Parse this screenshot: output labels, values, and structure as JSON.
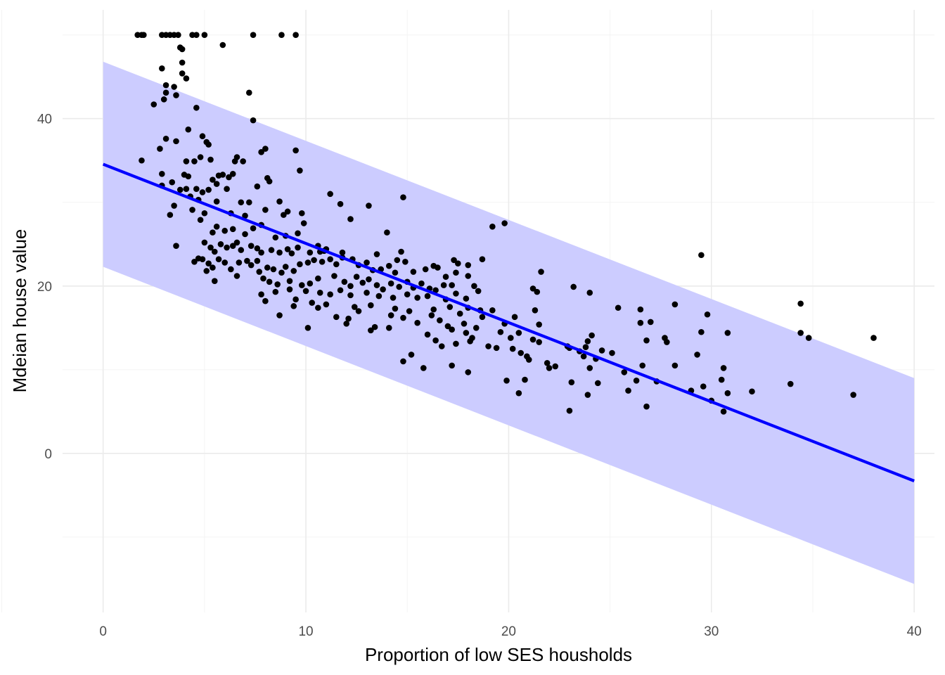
{
  "chart_data": {
    "type": "scatter",
    "xlabel": "Proportion of low SES housholds",
    "ylabel": "Mdeian house value",
    "xlim": [
      -2,
      41
    ],
    "ylim": [
      -19,
      53
    ],
    "x_ticks": [
      0,
      10,
      20,
      30,
      40
    ],
    "y_ticks": [
      0,
      20,
      40
    ],
    "grid": true,
    "legend": "none",
    "colors": {
      "points": "#000000",
      "fit_line": "#0000ff",
      "band": "#ccccff",
      "grid_major": "#ebebeb",
      "grid_minor": "#f4f4f4"
    },
    "fit": {
      "x": [
        0,
        40
      ],
      "y": [
        34.55,
        -3.29
      ]
    },
    "prediction_band": {
      "x": [
        0,
        40
      ],
      "lower": [
        22.3,
        -15.6
      ],
      "upper": [
        46.8,
        9.0
      ]
    },
    "points": [
      [
        1.7,
        50
      ],
      [
        1.9,
        50
      ],
      [
        2.0,
        50
      ],
      [
        2.9,
        50
      ],
      [
        3.1,
        50
      ],
      [
        3.3,
        50
      ],
      [
        3.5,
        50
      ],
      [
        3.7,
        50
      ],
      [
        4.4,
        50
      ],
      [
        4.6,
        50
      ],
      [
        5.0,
        50
      ],
      [
        7.4,
        50
      ],
      [
        8.8,
        50
      ],
      [
        9.5,
        50
      ],
      [
        5.9,
        48.8
      ],
      [
        3.8,
        48.5
      ],
      [
        3.9,
        48.3
      ],
      [
        3.9,
        46.7
      ],
      [
        2.9,
        46.0
      ],
      [
        3.9,
        45.4
      ],
      [
        4.1,
        44.8
      ],
      [
        3.1,
        44.0
      ],
      [
        3.5,
        43.8
      ],
      [
        3.1,
        43.1
      ],
      [
        3.6,
        42.8
      ],
      [
        3.0,
        42.3
      ],
      [
        2.5,
        41.7
      ],
      [
        4.6,
        41.3
      ],
      [
        7.2,
        43.1
      ],
      [
        7.4,
        39.8
      ],
      [
        4.2,
        38.7
      ],
      [
        3.1,
        37.6
      ],
      [
        3.6,
        37.3
      ],
      [
        4.9,
        37.9
      ],
      [
        5.1,
        37.2
      ],
      [
        5.2,
        36.9
      ],
      [
        2.8,
        36.4
      ],
      [
        7.8,
        36.0
      ],
      [
        8.0,
        36.4
      ],
      [
        9.5,
        36.2
      ],
      [
        6.6,
        35.4
      ],
      [
        6.5,
        34.9
      ],
      [
        5.3,
        35.1
      ],
      [
        1.9,
        35.0
      ],
      [
        4.1,
        34.9
      ],
      [
        4.8,
        35.4
      ],
      [
        4.5,
        34.9
      ],
      [
        6.9,
        34.9
      ],
      [
        9.7,
        33.8
      ],
      [
        2.9,
        33.4
      ],
      [
        4.0,
        33.3
      ],
      [
        4.2,
        33.1
      ],
      [
        5.7,
        33.2
      ],
      [
        5.9,
        33.3
      ],
      [
        6.4,
        33.4
      ],
      [
        6.2,
        33.0
      ],
      [
        3.4,
        32.4
      ],
      [
        5.4,
        32.7
      ],
      [
        5.6,
        32.2
      ],
      [
        8.2,
        32.5
      ],
      [
        8.1,
        32.9
      ],
      [
        7.6,
        31.9
      ],
      [
        6.1,
        31.6
      ],
      [
        3.8,
        31.5
      ],
      [
        2.9,
        32.0
      ],
      [
        4.1,
        31.6
      ],
      [
        4.6,
        31.6
      ],
      [
        4.9,
        31.2
      ],
      [
        5.2,
        31.5
      ],
      [
        4.3,
        30.7
      ],
      [
        4.7,
        30.3
      ],
      [
        3.5,
        29.6
      ],
      [
        5.6,
        30.1
      ],
      [
        6.8,
        30.0
      ],
      [
        7.2,
        30.0
      ],
      [
        8.0,
        29.1
      ],
      [
        8.7,
        30.1
      ],
      [
        9.1,
        28.9
      ],
      [
        4.4,
        29.1
      ],
      [
        5.0,
        28.7
      ],
      [
        6.3,
        28.7
      ],
      [
        7.0,
        28.4
      ],
      [
        8.9,
        28.5
      ],
      [
        9.8,
        28.7
      ],
      [
        3.3,
        28.5
      ],
      [
        4.8,
        27.9
      ],
      [
        5.6,
        27.1
      ],
      [
        6.4,
        26.8
      ],
      [
        7.8,
        27.3
      ],
      [
        9.9,
        27.5
      ],
      [
        7.4,
        26.9
      ],
      [
        5.4,
        26.4
      ],
      [
        6.0,
        26.6
      ],
      [
        7.0,
        26.2
      ],
      [
        8.5,
        25.8
      ],
      [
        9.0,
        26.0
      ],
      [
        9.6,
        26.3
      ],
      [
        3.6,
        24.8
      ],
      [
        5.0,
        25.2
      ],
      [
        5.3,
        24.6
      ],
      [
        5.5,
        24.1
      ],
      [
        5.8,
        25.0
      ],
      [
        6.1,
        24.6
      ],
      [
        6.4,
        24.8
      ],
      [
        6.6,
        25.2
      ],
      [
        6.8,
        24.3
      ],
      [
        7.3,
        24.8
      ],
      [
        7.6,
        24.5
      ],
      [
        7.8,
        24.0
      ],
      [
        8.3,
        24.3
      ],
      [
        8.7,
        24.0
      ],
      [
        9.1,
        24.4
      ],
      [
        9.3,
        23.9
      ],
      [
        9.6,
        24.6
      ],
      [
        10.2,
        24.0
      ],
      [
        10.7,
        24.1
      ],
      [
        11.0,
        24.4
      ],
      [
        4.9,
        23.2
      ],
      [
        5.2,
        22.7
      ],
      [
        5.4,
        22.2
      ],
      [
        5.7,
        23.2
      ],
      [
        6.0,
        22.8
      ],
      [
        6.3,
        22.0
      ],
      [
        6.7,
        22.8
      ],
      [
        7.1,
        23.0
      ],
      [
        7.3,
        22.5
      ],
      [
        7.6,
        23.0
      ],
      [
        7.7,
        21.7
      ],
      [
        8.1,
        22.2
      ],
      [
        8.4,
        22.0
      ],
      [
        8.8,
        21.6
      ],
      [
        9.0,
        22.3
      ],
      [
        9.4,
        21.8
      ],
      [
        9.7,
        22.6
      ],
      [
        10.1,
        22.8
      ],
      [
        10.4,
        23.1
      ],
      [
        10.8,
        22.9
      ],
      [
        11.2,
        23.2
      ],
      [
        11.5,
        22.6
      ],
      [
        11.8,
        23.4
      ],
      [
        12.3,
        23.2
      ],
      [
        12.6,
        22.5
      ],
      [
        13.0,
        22.8
      ],
      [
        13.3,
        21.9
      ],
      [
        13.7,
        22.0
      ],
      [
        14.1,
        22.4
      ],
      [
        14.4,
        21.6
      ],
      [
        4.5,
        22.9
      ],
      [
        4.7,
        23.3
      ],
      [
        5.1,
        21.8
      ],
      [
        5.5,
        20.6
      ],
      [
        6.6,
        21.2
      ],
      [
        7.9,
        20.9
      ],
      [
        8.2,
        20.5
      ],
      [
        8.6,
        20.2
      ],
      [
        9.2,
        20.6
      ],
      [
        9.8,
        20.1
      ],
      [
        10.2,
        20.3
      ],
      [
        10.6,
        20.9
      ],
      [
        11.4,
        21.2
      ],
      [
        11.9,
        20.5
      ],
      [
        12.2,
        20.0
      ],
      [
        12.5,
        21.1
      ],
      [
        12.8,
        20.4
      ],
      [
        13.1,
        20.8
      ],
      [
        13.5,
        20.1
      ],
      [
        13.8,
        19.6
      ],
      [
        14.2,
        20.3
      ],
      [
        14.6,
        19.9
      ],
      [
        15.0,
        20.5
      ],
      [
        15.3,
        19.8
      ],
      [
        15.7,
        20.3
      ],
      [
        16.1,
        19.7
      ],
      [
        16.4,
        19.5
      ],
      [
        16.8,
        20.1
      ],
      [
        7.8,
        19.0
      ],
      [
        8.5,
        19.3
      ],
      [
        9.2,
        19.6
      ],
      [
        10.0,
        19.4
      ],
      [
        10.7,
        19.2
      ],
      [
        11.2,
        19.0
      ],
      [
        11.7,
        19.5
      ],
      [
        12.2,
        18.9
      ],
      [
        13.0,
        19.2
      ],
      [
        13.6,
        18.8
      ],
      [
        14.3,
        18.6
      ],
      [
        15.0,
        19.0
      ],
      [
        15.5,
        18.6
      ],
      [
        16.0,
        18.8
      ],
      [
        16.9,
        18.4
      ],
      [
        17.4,
        19.1
      ],
      [
        17.9,
        18.5
      ],
      [
        8.0,
        18.2
      ],
      [
        9.5,
        18.4
      ],
      [
        10.3,
        18.0
      ],
      [
        11.0,
        17.8
      ],
      [
        12.4,
        17.5
      ],
      [
        13.2,
        17.7
      ],
      [
        14.4,
        17.3
      ],
      [
        15.1,
        17.0
      ],
      [
        16.3,
        17.2
      ],
      [
        17.1,
        17.5
      ],
      [
        18.0,
        17.4
      ],
      [
        18.6,
        17.1
      ],
      [
        9.4,
        17.6
      ],
      [
        10.6,
        17.4
      ],
      [
        12.6,
        17.0
      ],
      [
        14.2,
        16.5
      ],
      [
        14.8,
        16.2
      ],
      [
        16.2,
        16.5
      ],
      [
        17.6,
        16.7
      ],
      [
        18.7,
        16.3
      ],
      [
        19.2,
        17.1
      ],
      [
        8.7,
        16.5
      ],
      [
        11.5,
        16.3
      ],
      [
        12.1,
        16.1
      ],
      [
        13.4,
        15.1
      ],
      [
        14.1,
        15.0
      ],
      [
        15.5,
        15.6
      ],
      [
        16.6,
        15.9
      ],
      [
        17.0,
        15.2
      ],
      [
        17.8,
        15.5
      ],
      [
        18.4,
        15.0
      ],
      [
        19.8,
        15.5
      ],
      [
        20.3,
        16.3
      ],
      [
        10.1,
        15.0
      ],
      [
        12.0,
        15.5
      ],
      [
        13.2,
        14.7
      ],
      [
        16.0,
        14.2
      ],
      [
        17.2,
        14.8
      ],
      [
        17.9,
        14.4
      ],
      [
        18.2,
        13.8
      ],
      [
        19.6,
        14.5
      ],
      [
        20.1,
        13.8
      ],
      [
        16.4,
        13.5
      ],
      [
        16.7,
        12.8
      ],
      [
        17.4,
        13.1
      ],
      [
        18.1,
        13.4
      ],
      [
        19.0,
        12.8
      ],
      [
        19.4,
        12.6
      ],
      [
        20.2,
        12.5
      ],
      [
        21.5,
        15.4
      ],
      [
        21.3,
        17.1
      ],
      [
        21.4,
        19.3
      ],
      [
        21.2,
        19.7
      ],
      [
        21.6,
        21.7
      ],
      [
        19.8,
        27.5
      ],
      [
        19.2,
        27.1
      ],
      [
        18.7,
        23.2
      ],
      [
        17.3,
        23.1
      ],
      [
        17.5,
        22.7
      ],
      [
        18.0,
        22.5
      ],
      [
        16.3,
        22.4
      ],
      [
        15.9,
        22.0
      ],
      [
        17.4,
        21.6
      ],
      [
        18.0,
        21.2
      ],
      [
        15.3,
        21.7
      ],
      [
        14.0,
        26.4
      ],
      [
        13.1,
        29.6
      ],
      [
        14.8,
        30.6
      ],
      [
        11.2,
        31.0
      ],
      [
        11.7,
        29.8
      ],
      [
        12.2,
        28.0
      ],
      [
        10.6,
        24.8
      ],
      [
        10.9,
        24.2
      ],
      [
        11.8,
        24.0
      ],
      [
        13.5,
        23.8
      ],
      [
        14.7,
        24.1
      ],
      [
        14.5,
        23.1
      ],
      [
        14.9,
        22.9
      ],
      [
        16.5,
        22.2
      ],
      [
        16.9,
        21.1
      ],
      [
        17.2,
        20.1
      ],
      [
        18.3,
        20.0
      ],
      [
        18.5,
        19.4
      ],
      [
        14.8,
        11.0
      ],
      [
        15.2,
        11.8
      ],
      [
        15.8,
        10.2
      ],
      [
        17.2,
        10.5
      ],
      [
        18.0,
        9.7
      ],
      [
        20.5,
        14.4
      ],
      [
        20.9,
        11.6
      ],
      [
        21.0,
        11.2
      ],
      [
        20.6,
        12.0
      ],
      [
        21.2,
        13.6
      ],
      [
        21.5,
        13.3
      ],
      [
        21.9,
        10.8
      ],
      [
        22.3,
        10.4
      ],
      [
        22.0,
        10.2
      ],
      [
        19.9,
        8.7
      ],
      [
        20.5,
        7.2
      ],
      [
        20.8,
        8.8
      ],
      [
        22.9,
        12.8
      ],
      [
        23.0,
        12.6
      ],
      [
        23.5,
        12.2
      ],
      [
        23.7,
        11.6
      ],
      [
        23.9,
        13.4
      ],
      [
        24.1,
        14.1
      ],
      [
        23.8,
        12.7
      ],
      [
        24.3,
        11.3
      ],
      [
        24.0,
        10.2
      ],
      [
        23.1,
        8.5
      ],
      [
        24.4,
        8.4
      ],
      [
        23.9,
        7.0
      ],
      [
        23.0,
        5.1
      ],
      [
        23.2,
        19.9
      ],
      [
        24.0,
        19.2
      ],
      [
        25.4,
        17.4
      ],
      [
        26.5,
        17.2
      ],
      [
        26.5,
        15.6
      ],
      [
        27.0,
        15.7
      ],
      [
        28.2,
        17.8
      ],
      [
        29.8,
        16.6
      ],
      [
        29.5,
        14.5
      ],
      [
        30.8,
        14.4
      ],
      [
        27.7,
        13.8
      ],
      [
        26.8,
        13.5
      ],
      [
        27.8,
        13.3
      ],
      [
        29.3,
        11.8
      ],
      [
        28.2,
        10.5
      ],
      [
        26.6,
        10.5
      ],
      [
        24.6,
        12.3
      ],
      [
        25.1,
        12.0
      ],
      [
        25.7,
        9.7
      ],
      [
        26.3,
        8.7
      ],
      [
        27.3,
        8.6
      ],
      [
        25.9,
        7.5
      ],
      [
        26.8,
        5.6
      ],
      [
        29.0,
        7.5
      ],
      [
        29.6,
        8.0
      ],
      [
        30.0,
        6.3
      ],
      [
        30.6,
        5.0
      ],
      [
        30.6,
        10.2
      ],
      [
        30.5,
        8.8
      ],
      [
        30.8,
        7.2
      ],
      [
        32.0,
        7.4
      ],
      [
        33.9,
        8.3
      ],
      [
        29.5,
        23.7
      ],
      [
        34.4,
        17.9
      ],
      [
        34.4,
        14.4
      ],
      [
        34.8,
        13.8
      ],
      [
        37.0,
        7.0
      ],
      [
        38.0,
        13.8
      ]
    ]
  }
}
